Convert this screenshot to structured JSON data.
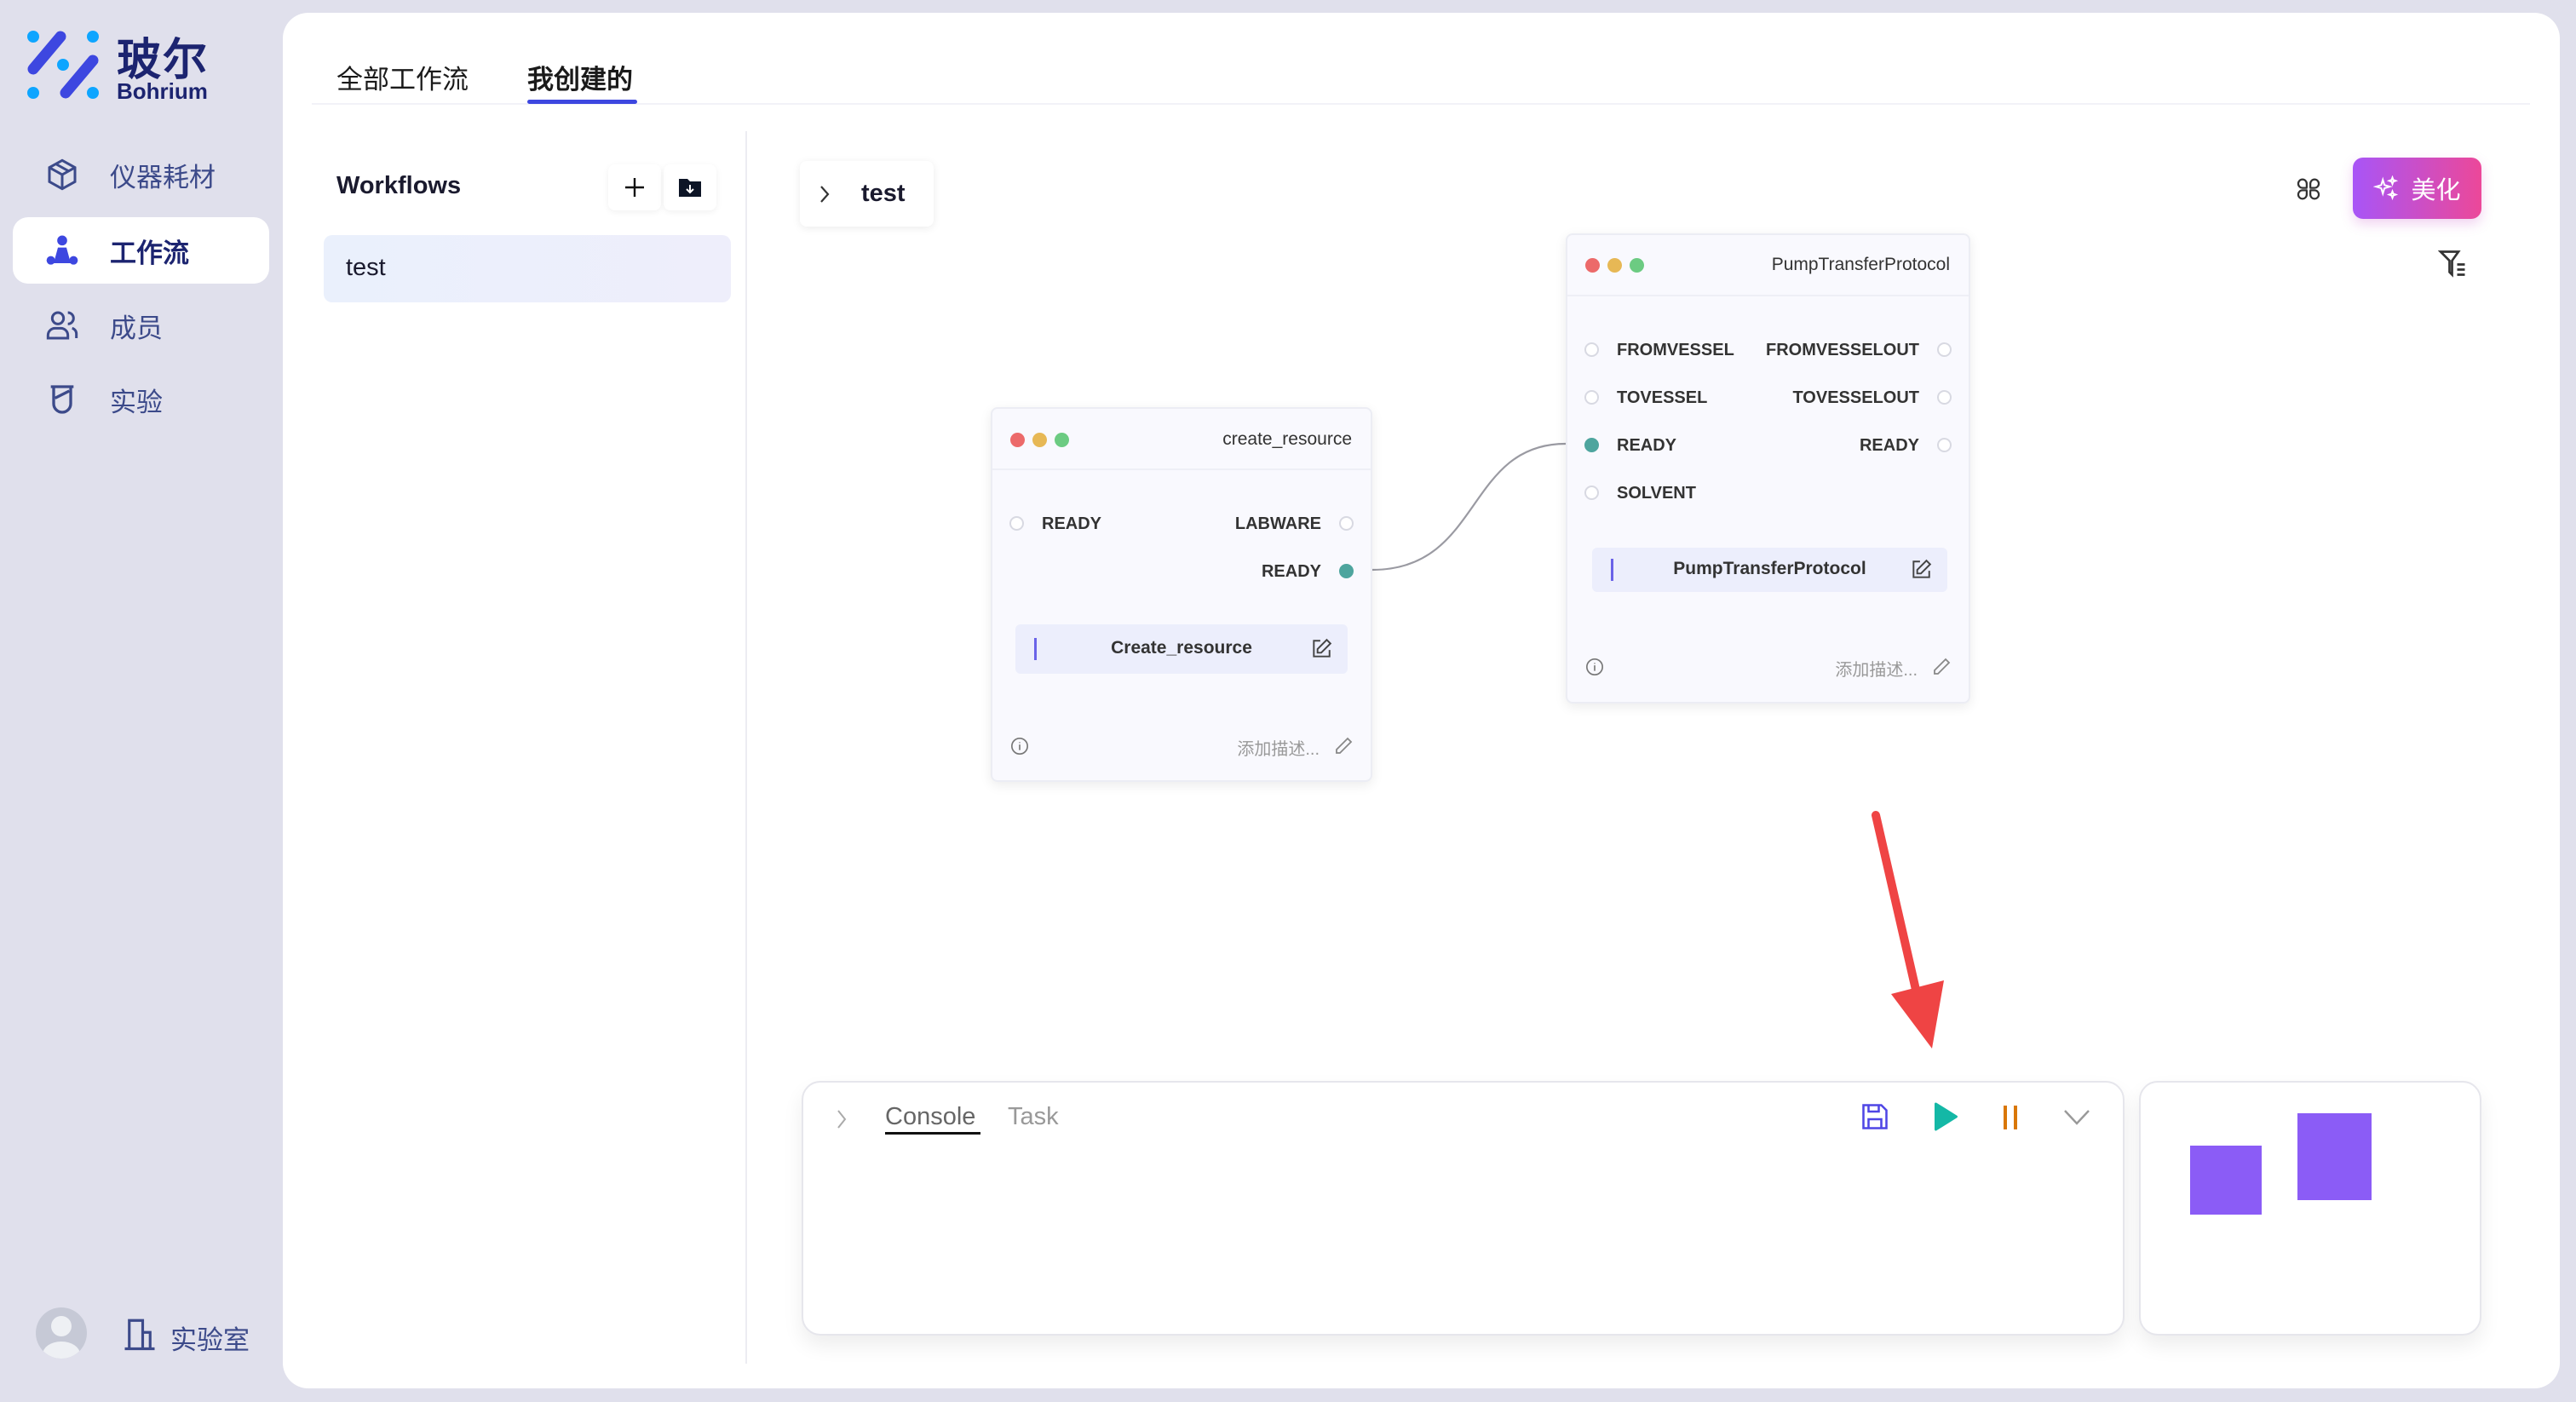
{
  "brand": {
    "name_cn": "玻尔",
    "name_en": "Bohrium"
  },
  "sidebar": {
    "items": [
      {
        "label": "仪器耗材",
        "icon": "box-icon",
        "active": false
      },
      {
        "label": "工作流",
        "icon": "workflow-icon",
        "active": true
      },
      {
        "label": "成员",
        "icon": "users-icon",
        "active": false
      },
      {
        "label": "实验",
        "icon": "beaker-icon",
        "active": false
      }
    ],
    "footer": {
      "lab_label": "实验室"
    }
  },
  "tabs": [
    {
      "label": "全部工作流",
      "active": false
    },
    {
      "label": "我创建的",
      "active": true
    }
  ],
  "workflows": {
    "title": "Workflows",
    "items": [
      "test"
    ]
  },
  "breadcrumb": {
    "label": "test"
  },
  "toolbar": {
    "beautify_label": "美化"
  },
  "nodes": [
    {
      "title": "create_resource",
      "inputs": [
        "READY"
      ],
      "outputs": [
        "LABWARE",
        "READY"
      ],
      "name": "Create_resource",
      "desc_placeholder": "添加描述..."
    },
    {
      "title": "PumpTransferProtocol",
      "inputs": [
        "FROMVESSEL",
        "TOVESSEL",
        "READY",
        "SOLVENT"
      ],
      "outputs": [
        "FROMVESSELOUT",
        "TOVESSELOUT",
        "READY"
      ],
      "name": "PumpTransferProtocol",
      "desc_placeholder": "添加描述..."
    }
  ],
  "console": {
    "tabs": [
      "Console",
      "Task"
    ],
    "active_tab": "Console"
  },
  "colors": {
    "accent": "#3d47e0",
    "port_connected": "#4ea59e",
    "play": "#14b8a6",
    "pause": "#d97706",
    "minimap": "#8b5cf6",
    "beautify_from": "#a855f7",
    "beautify_to": "#ec4899",
    "arrow": "#ef4444"
  }
}
